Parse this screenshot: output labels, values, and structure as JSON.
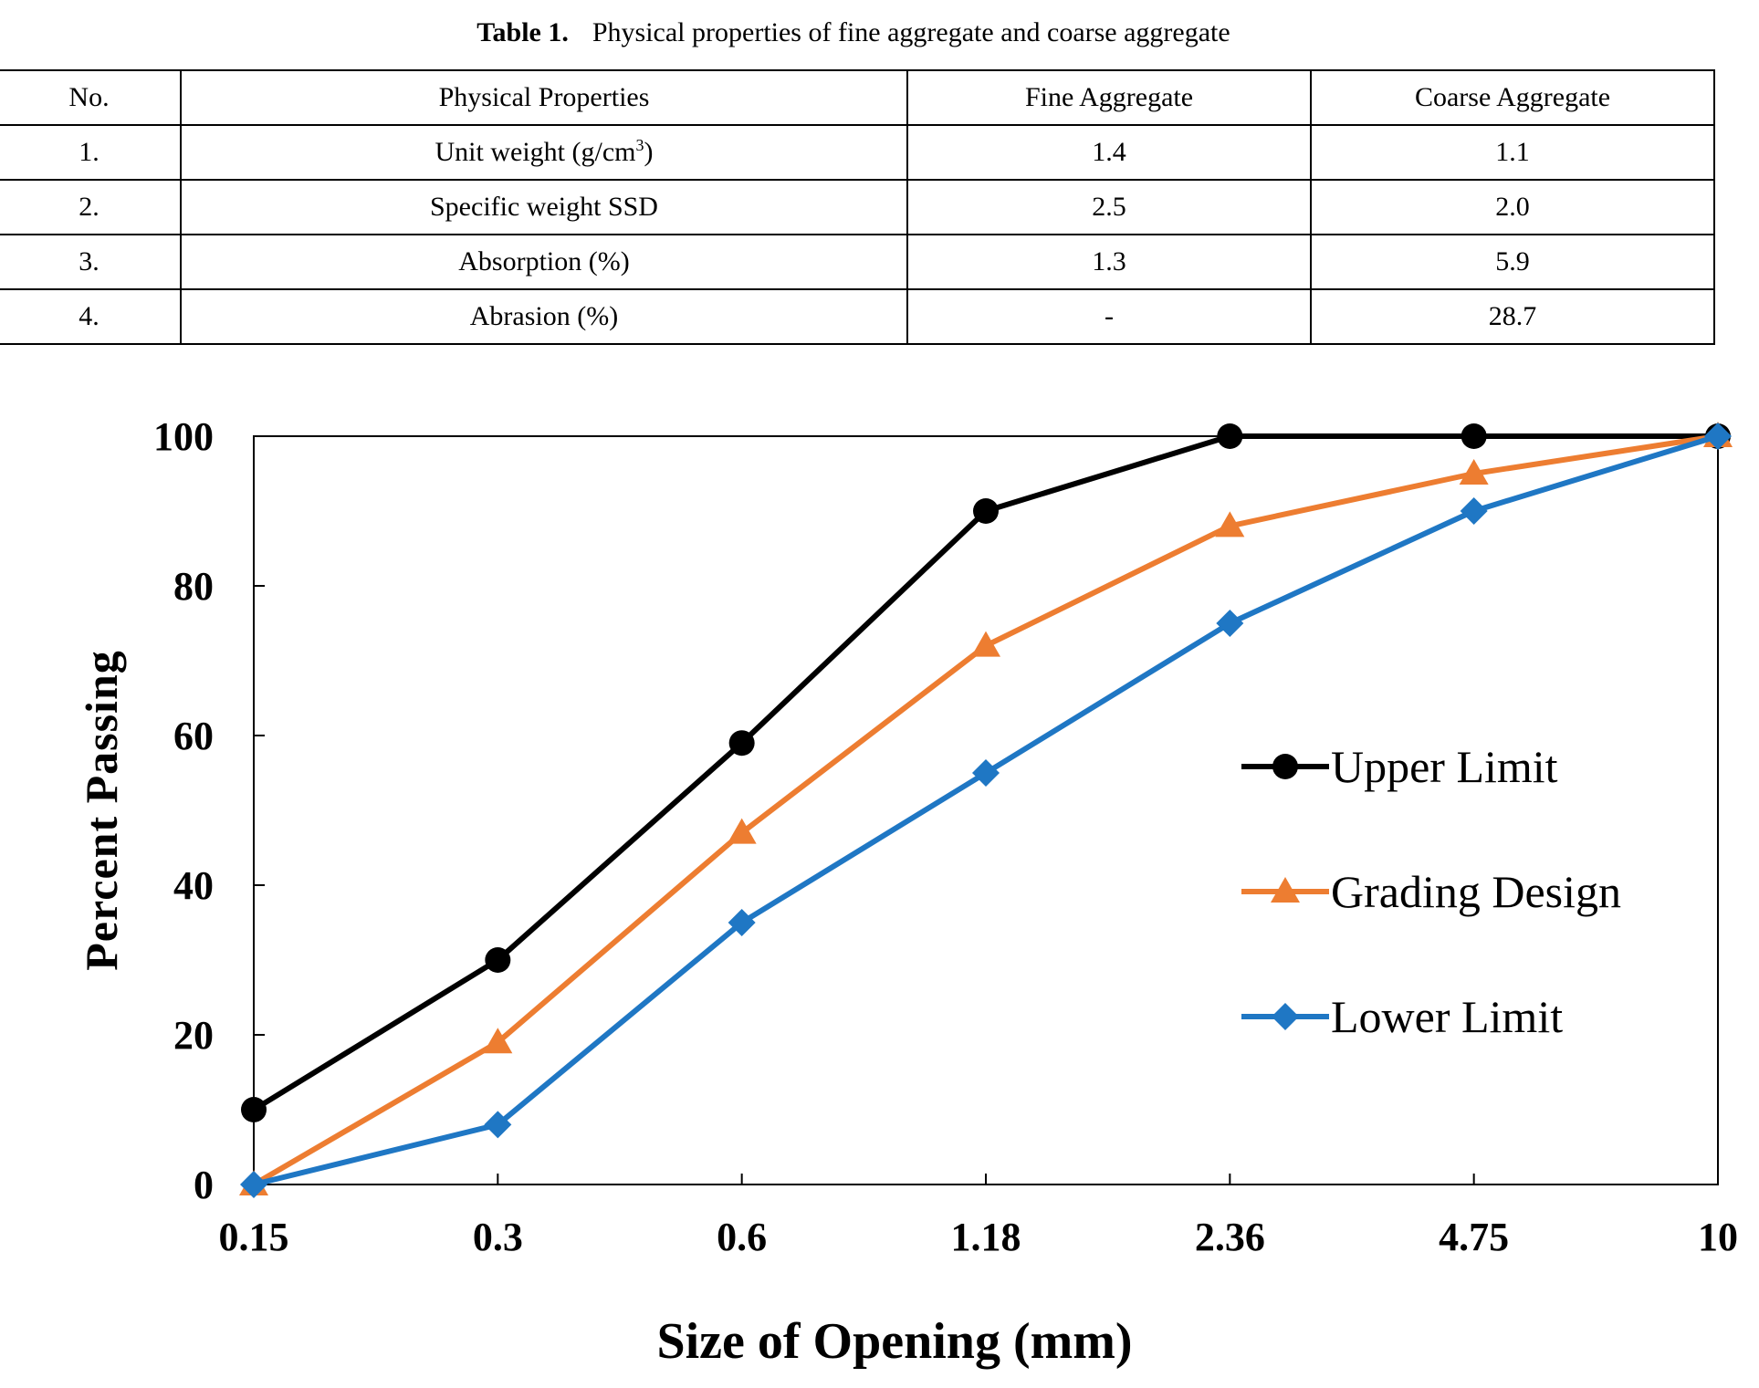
{
  "table": {
    "caption_label": "Table 1.",
    "caption_text": "Physical properties of fine aggregate and coarse aggregate",
    "headers": [
      "No.",
      "Physical Properties",
      "Fine Aggregate",
      "Coarse Aggregate"
    ],
    "rows": [
      {
        "no": "1.",
        "property": "Unit weight (g/cm",
        "sup": "3",
        "property_suffix": ")",
        "fine": "1.4",
        "coarse": "1.1"
      },
      {
        "no": "2.",
        "property": "Specific weight SSD",
        "fine": "2.5",
        "coarse": "2.0"
      },
      {
        "no": "3.",
        "property": "Absorption (%)",
        "fine": "1.3",
        "coarse": "5.9"
      },
      {
        "no": "4.",
        "property": "Abrasion (%)",
        "fine": "-",
        "coarse": "28.7"
      }
    ]
  },
  "chart_data": {
    "type": "line",
    "categories": [
      "0.15",
      "0.3",
      "0.6",
      "1.18",
      "2.36",
      "4.75",
      "10"
    ],
    "series": [
      {
        "name": "Upper Limit",
        "color": "#000000",
        "marker": "circle",
        "values": [
          10,
          30,
          59,
          90,
          100,
          100,
          100
        ]
      },
      {
        "name": "Grading Design",
        "color": "#ED7D31",
        "marker": "triangle",
        "values": [
          0,
          19,
          47,
          72,
          88,
          95,
          100
        ]
      },
      {
        "name": "Lower Limit",
        "color": "#1F77C4",
        "marker": "diamond",
        "values": [
          0,
          8,
          35,
          55,
          75,
          90,
          100
        ]
      }
    ],
    "xlabel": "Size of Opening (mm)",
    "ylabel": "Percent Passing",
    "ylim": [
      0,
      100
    ],
    "yticks": [
      0,
      20,
      40,
      60,
      80,
      100
    ],
    "grid": false,
    "legend": "center-right"
  }
}
